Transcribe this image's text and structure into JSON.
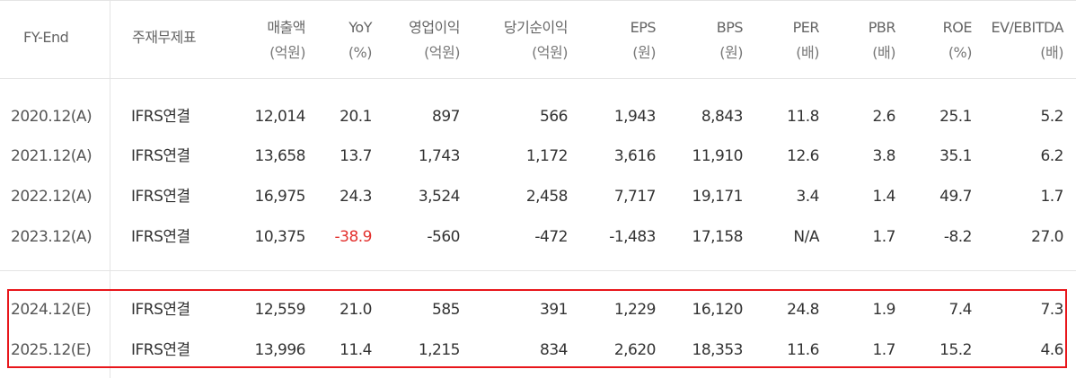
{
  "headers": [
    {
      "label": "FY-End",
      "unit": ""
    },
    {
      "label": "주재무제표",
      "unit": ""
    },
    {
      "label": "매출액",
      "unit": "(억원)"
    },
    {
      "label": "YoY",
      "unit": "(%)"
    },
    {
      "label": "영업이익",
      "unit": "(억원)"
    },
    {
      "label": "당기순이익",
      "unit": "(억원)"
    },
    {
      "label": "EPS",
      "unit": "(원)"
    },
    {
      "label": "BPS",
      "unit": "(원)"
    },
    {
      "label": "PER",
      "unit": "(배)"
    },
    {
      "label": "PBR",
      "unit": "(배)"
    },
    {
      "label": "ROE",
      "unit": "(%)"
    },
    {
      "label": "EV/EBITDA",
      "unit": "(배)"
    }
  ],
  "rows": [
    [
      "2020.12(A)",
      "IFRS연결",
      "12,014",
      "20.1",
      "897",
      "566",
      "1,943",
      "8,843",
      "11.8",
      "2.6",
      "25.1",
      "5.2"
    ],
    [
      "2021.12(A)",
      "IFRS연결",
      "13,658",
      "13.7",
      "1,743",
      "1,172",
      "3,616",
      "11,910",
      "12.6",
      "3.8",
      "35.1",
      "6.2"
    ],
    [
      "2022.12(A)",
      "IFRS연결",
      "16,975",
      "24.3",
      "3,524",
      "2,458",
      "7,717",
      "19,171",
      "3.4",
      "1.4",
      "49.7",
      "1.7"
    ],
    [
      "2023.12(A)",
      "IFRS연결",
      "10,375",
      "-38.9",
      "-560",
      "-472",
      "-1,483",
      "17,158",
      "N/A",
      "1.7",
      "-8.2",
      "27.0"
    ],
    [
      "2024.12(E)",
      "IFRS연결",
      "12,559",
      "21.0",
      "585",
      "391",
      "1,229",
      "16,120",
      "24.8",
      "1.9",
      "7.4",
      "7.3"
    ],
    [
      "2025.12(E)",
      "IFRS연결",
      "13,996",
      "11.4",
      "1,215",
      "834",
      "2,620",
      "18,353",
      "11.6",
      "1.7",
      "15.2",
      "4.6"
    ]
  ],
  "colors": {
    "negative_highlight": "#e3312e",
    "forecast_box": "#e8161b",
    "grid_line": "#e4e4e4"
  }
}
